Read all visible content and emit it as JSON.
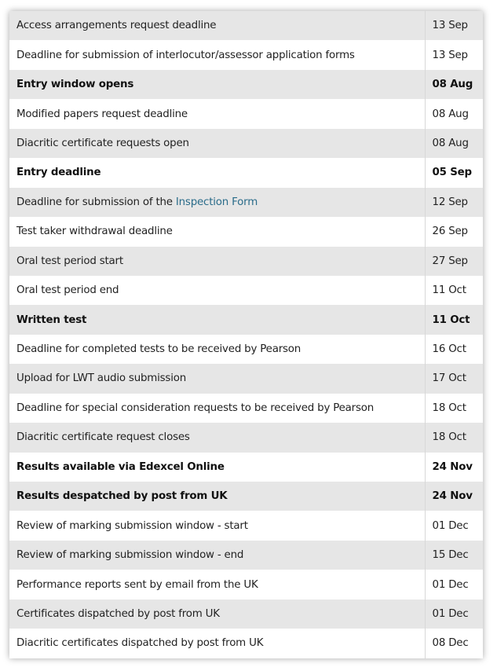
{
  "link_color": "#2a6c8a",
  "rows": [
    {
      "event": "Access arrangements request deadline",
      "date": "13 Sep",
      "bold": false
    },
    {
      "event": "Deadline for submission of interlocutor/assessor application forms",
      "date": "13 Sep",
      "bold": false
    },
    {
      "event": "Entry window opens",
      "date": "08 Aug",
      "bold": true
    },
    {
      "event": "Modified papers request deadline",
      "date": "08 Aug",
      "bold": false
    },
    {
      "event": "Diacritic certificate requests open",
      "date": "08 Aug",
      "bold": false
    },
    {
      "event": "Entry deadline",
      "date": "05 Sep",
      "bold": true
    },
    {
      "event": "Deadline for submission of the ",
      "link": "Inspection Form",
      "date": "12 Sep",
      "bold": false
    },
    {
      "event": "Test taker withdrawal deadline",
      "date": "26 Sep",
      "bold": false
    },
    {
      "event": "Oral test period start",
      "date": "27 Sep",
      "bold": false
    },
    {
      "event": "Oral test period end",
      "date": "11 Oct",
      "bold": false
    },
    {
      "event": "Written test",
      "date": "11 Oct",
      "bold": true
    },
    {
      "event": "Deadline for completed tests to be received by Pearson",
      "date": "16 Oct",
      "bold": false
    },
    {
      "event": "Upload for LWT audio submission",
      "date": "17 Oct",
      "bold": false
    },
    {
      "event": "Deadline for special consideration requests to be received by Pearson",
      "date": "18 Oct",
      "bold": false
    },
    {
      "event": "Diacritic certificate request closes",
      "date": "18 Oct",
      "bold": false
    },
    {
      "event": "Results available via Edexcel Online",
      "date": "24 Nov",
      "bold": true
    },
    {
      "event": "Results despatched by post from UK",
      "date": "24 Nov",
      "bold": true
    },
    {
      "event": "Review of marking submission window - start",
      "date": "01 Dec",
      "bold": false
    },
    {
      "event": "Review of marking submission window - end",
      "date": "15 Dec",
      "bold": false
    },
    {
      "event": "Performance reports sent by email from the UK",
      "date": "01 Dec",
      "bold": false
    },
    {
      "event": "Certificates dispatched by post from UK",
      "date": "01 Dec",
      "bold": false
    },
    {
      "event": "Diacritic certificates dispatched by post from UK",
      "date": "08 Dec",
      "bold": false
    }
  ]
}
